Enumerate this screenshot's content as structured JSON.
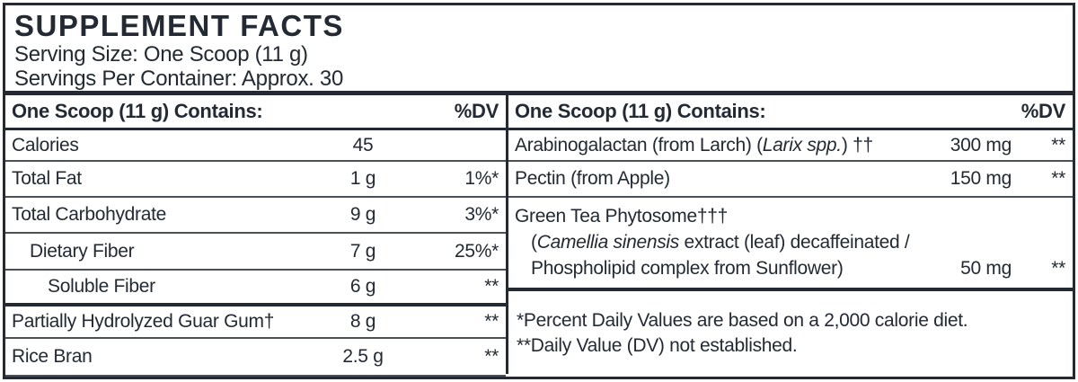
{
  "header": {
    "title": "SUPPLEMENT FACTS",
    "serving_size": "Serving Size: One Scoop (11 g)",
    "servings_per_container": "Servings Per Container: Approx. 30"
  },
  "left_column": {
    "header": {
      "label": "One Scoop (11 g) Contains:",
      "dv_label": "%DV"
    },
    "rows": [
      {
        "name": "Calories",
        "amount": "45",
        "dv": ""
      },
      {
        "name": "Total Fat",
        "amount": "1 g",
        "dv": "1%*"
      },
      {
        "name": "Total Carbohydrate",
        "amount": "9 g",
        "dv": "3%*"
      },
      {
        "name": "Dietary Fiber",
        "amount": "7 g",
        "dv": "25%*"
      },
      {
        "name": "Soluble Fiber",
        "amount": "6 g",
        "dv": "**"
      },
      {
        "name": "Partially Hydrolyzed Guar Gum†",
        "amount": "8 g",
        "dv": "**"
      },
      {
        "name": "Rice Bran",
        "amount": "2.5 g",
        "dv": "**"
      }
    ]
  },
  "right_column": {
    "header": {
      "label": "One Scoop (11 g) Contains:",
      "dv_label": "%DV"
    },
    "rows": [
      {
        "name_pre": "Arabinogalactan (from Larch) (",
        "name_italic": "Larix spp.",
        "name_post": ") ††",
        "amount": "300 mg",
        "dv": "**"
      },
      {
        "name": "Pectin (from Apple)",
        "amount": "150 mg",
        "dv": "**"
      }
    ],
    "green_tea": {
      "line1": "Green Tea Phytosome†††",
      "line2_pre": "(",
      "line2_italic": "Camellia sinensis",
      "line2_post": " extract (leaf) decaffeinated /",
      "line3": "Phospholipid complex from Sunflower)",
      "amount": "50 mg",
      "dv": "**"
    },
    "footnotes": [
      "*Percent Daily Values are based on a 2,000 calorie diet.",
      "**Daily Value (DV) not established."
    ]
  },
  "colors": {
    "ink": "#232a33",
    "hairline": "#4a5058",
    "background": "#ffffff"
  }
}
